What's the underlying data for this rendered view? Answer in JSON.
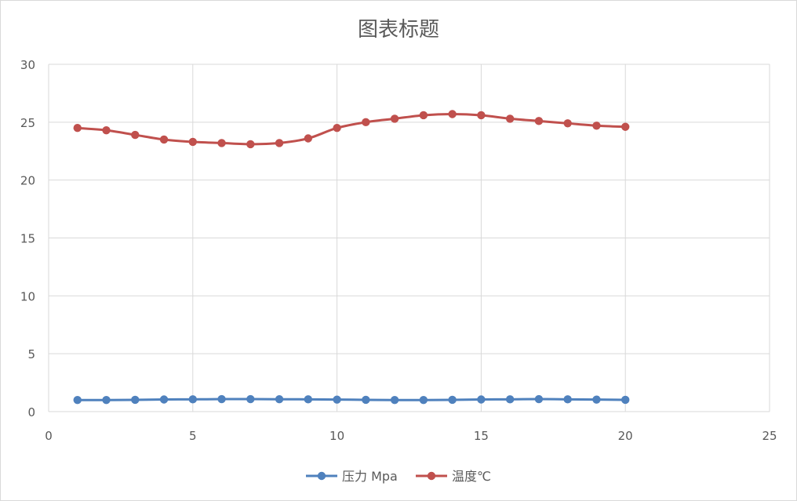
{
  "chart_data": {
    "type": "scatter",
    "title": "图表标题",
    "xlim": [
      0,
      25
    ],
    "ylim": [
      0,
      30
    ],
    "x_ticks": [
      0,
      5,
      10,
      15,
      20,
      25
    ],
    "y_ticks": [
      0,
      5,
      10,
      15,
      20,
      25,
      30
    ],
    "x_tick_labels": [
      "0",
      "5",
      "10",
      "15",
      "20",
      "25"
    ],
    "y_tick_labels": [
      "0",
      "5",
      "10",
      "15",
      "20",
      "25",
      "30"
    ],
    "grid": true,
    "legend_position": "bottom",
    "x": [
      1,
      2,
      3,
      4,
      5,
      6,
      7,
      8,
      9,
      10,
      11,
      12,
      13,
      14,
      15,
      16,
      17,
      18,
      19,
      20
    ],
    "series": [
      {
        "name": "压力 Mpa",
        "color": "#4F81BD",
        "values": [
          1.0,
          1.0,
          1.02,
          1.05,
          1.06,
          1.08,
          1.08,
          1.07,
          1.06,
          1.04,
          1.02,
          1.0,
          1.0,
          1.02,
          1.05,
          1.06,
          1.08,
          1.06,
          1.04,
          1.02
        ]
      },
      {
        "name": "温度℃",
        "color": "#C0504D",
        "values": [
          24.5,
          24.3,
          23.9,
          23.5,
          23.3,
          23.2,
          23.1,
          23.2,
          23.6,
          24.5,
          25.0,
          25.3,
          25.6,
          25.7,
          25.6,
          25.3,
          25.1,
          24.9,
          24.7,
          24.6
        ]
      }
    ]
  }
}
